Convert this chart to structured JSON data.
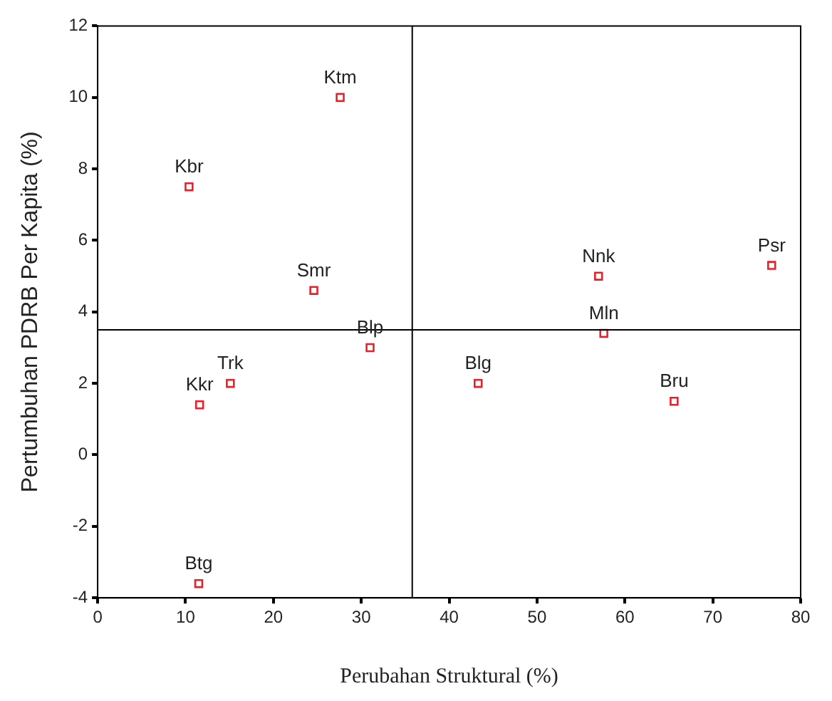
{
  "chart_data": {
    "type": "scatter",
    "xlabel": "Perubahan Struktural (%)",
    "ylabel": "Pertumbuhan PDRB Per Kapita (%)",
    "x": [
      27.6,
      10.4,
      24.6,
      31.0,
      15.1,
      11.6,
      11.5,
      43.3,
      57.6,
      57.0,
      76.7,
      65.6
    ],
    "series": [
      {
        "color": "#e8202a",
        "values": [
          10.0,
          7.5,
          4.6,
          3.0,
          2.0,
          1.4,
          -3.6,
          2.0,
          3.4,
          5.0,
          5.3,
          1.5
        ]
      }
    ],
    "annotations": [
      {
        "text": "Ktm",
        "x": 27.6,
        "y": 10.0
      },
      {
        "text": "Kbr",
        "x": 10.4,
        "y": 7.5
      },
      {
        "text": "Smr",
        "x": 24.6,
        "y": 4.6
      },
      {
        "text": "Blp",
        "x": 31.0,
        "y": 3.0
      },
      {
        "text": "Trk",
        "x": 15.1,
        "y": 2.0
      },
      {
        "text": "Kkr",
        "x": 11.6,
        "y": 1.4
      },
      {
        "text": "Btg",
        "x": 11.5,
        "y": -3.6
      },
      {
        "text": "Blg",
        "x": 43.3,
        "y": 2.0
      },
      {
        "text": "Mln",
        "x": 57.6,
        "y": 3.4
      },
      {
        "text": "Nnk",
        "x": 57.0,
        "y": 5.0
      },
      {
        "text": "Psr",
        "x": 76.7,
        "y": 5.3
      },
      {
        "text": "Bru",
        "x": 65.6,
        "y": 1.5
      }
    ],
    "ref_lines": [
      {
        "axis": "x",
        "value": 35.8,
        "color": "#000000"
      },
      {
        "axis": "y",
        "value": 3.5,
        "color": "#000000"
      }
    ],
    "xlim": [
      0,
      80
    ],
    "xticks": [
      0,
      10,
      20,
      30,
      40,
      50,
      60,
      70,
      80
    ],
    "ylim": [
      -4,
      12
    ],
    "yticks": [
      -4,
      -2,
      0,
      2,
      4,
      6,
      8,
      10,
      12
    ],
    "grid": false,
    "legend": false,
    "marker": "square"
  }
}
